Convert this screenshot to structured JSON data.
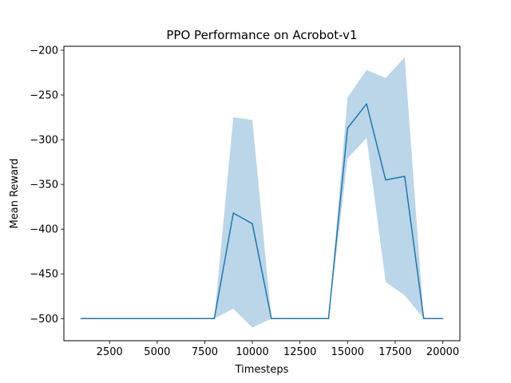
{
  "chart_data": {
    "type": "line",
    "title": "PPO Performance on Acrobot-v1",
    "xlabel": "Timesteps",
    "ylabel": "Mean Reward",
    "xlim": [
      100,
      20900
    ],
    "ylim": [
      -524.7,
      -195.6
    ],
    "x_ticks": [
      2500,
      5000,
      7500,
      10000,
      12500,
      15000,
      17500,
      20000
    ],
    "y_ticks": [
      -500,
      -450,
      -400,
      -350,
      -300,
      -250,
      -200
    ],
    "grid": false,
    "legend": "none",
    "series": [
      {
        "x": [
          1000,
          2000,
          3000,
          4000,
          5000,
          6000,
          7000,
          8000,
          9000,
          10000,
          11000,
          12000,
          13000,
          14000,
          15000,
          16000,
          17000,
          18000,
          19000,
          20000
        ],
        "y": [
          -500,
          -500,
          -500,
          -500,
          -500,
          -500,
          -500,
          -500,
          -382,
          -394,
          -500,
          -500,
          -500,
          -500,
          -287,
          -260,
          -345,
          -341,
          -500,
          -500
        ],
        "y_upper": [
          -500,
          -500,
          -500,
          -500,
          -500,
          -500,
          -500,
          -500,
          -275,
          -278,
          -500,
          -500,
          -500,
          -500,
          -253,
          -222,
          -231,
          -208,
          -500,
          -500
        ],
        "y_lower": [
          -500,
          -500,
          -500,
          -500,
          -500,
          -500,
          -500,
          -500,
          -489,
          -510,
          -500,
          -500,
          -500,
          -500,
          -321,
          -298,
          -459,
          -474,
          -500,
          -500
        ],
        "color": "#1f77b4",
        "band_color": "#1f77b4"
      }
    ]
  }
}
